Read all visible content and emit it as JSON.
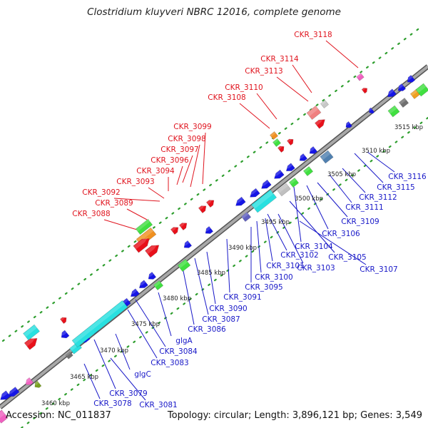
{
  "title": "Clostridium kluyveri NBRC 12016, complete genome",
  "footer": {
    "accession": "Accession: NC_011837",
    "topology": "Topology: circular; Length: 3,896,121 bp; Genes: 3,549"
  },
  "colors": {
    "backbone": "#8c8c8c",
    "dots": "#2e9e2e",
    "forward_label": "#e0141e",
    "reverse_label": "#1818c8",
    "forward_gene": "#e8101a",
    "reverse_gene": "#1515e6",
    "highlight_cyan": "#28e0e0",
    "highlight_green": "#40e040"
  },
  "scale_ticks": [
    "3460 kbp",
    "3465 kbp",
    "3470 kbp",
    "3475 kbp",
    "3480 kbp",
    "3485 kbp",
    "3490 kbp",
    "3495 kbp",
    "3500 kbp",
    "3505 kbp",
    "3510 kbp",
    "3515 kbp"
  ],
  "forward_labels": [
    "CKR_3118",
    "CKR_3114",
    "CKR_3113",
    "CKR_3110",
    "CKR_3108",
    "CKR_3099",
    "CKR_3098",
    "CKR_3097",
    "CKR_3096",
    "CKR_3094",
    "CKR_3093",
    "CKR_3092",
    "CKR_3089",
    "CKR_3088"
  ],
  "reverse_labels": [
    "CKR_3116",
    "CKR_3115",
    "CKR_3112",
    "CKR_3111",
    "CKR_3109",
    "CKR_3106",
    "CKR_3104",
    "CKR_3105",
    "CKR_3107",
    "CKR_3102",
    "CKR_3103",
    "CKR_3101",
    "CKR_3100",
    "CKR_3095",
    "CKR_3091",
    "CKR_3090",
    "CKR_3087",
    "CKR_3086",
    "glgA",
    "CKR_3084",
    "CKR_3083",
    "glgC",
    "CKR_3079",
    "CKR_3078",
    "CKR_3081"
  ]
}
